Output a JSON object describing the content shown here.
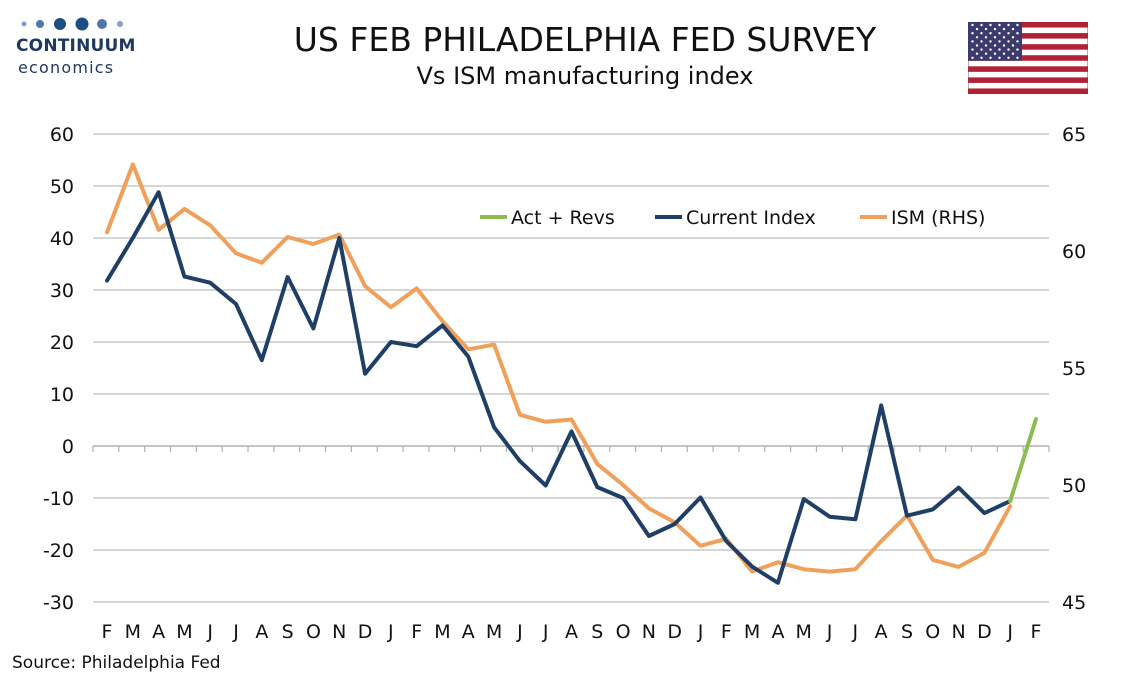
{
  "header": {
    "logo_word1": "CONTINUUM",
    "logo_word2": "economics",
    "title": "US FEB PHILADELPHIA FED SURVEY",
    "subtitle": "Vs ISM manufacturing index",
    "flag_icon": "us-flag-icon"
  },
  "footer": {
    "source": "Source: Philadelphia Fed"
  },
  "colors": {
    "act_revs": "#8fbc4f",
    "current_index": "#1f3f66",
    "ism": "#f0a05a",
    "grid": "#c8c8c8"
  },
  "chart_data": {
    "type": "line",
    "title": "US FEB PHILADELPHIA FED SURVEY",
    "subtitle": "Vs ISM manufacturing index",
    "categories": [
      "F",
      "M",
      "A",
      "M",
      "J",
      "J",
      "A",
      "S",
      "O",
      "N",
      "D",
      "J",
      "F",
      "M",
      "A",
      "M",
      "J",
      "J",
      "A",
      "S",
      "O",
      "N",
      "D",
      "J",
      "F",
      "M",
      "A",
      "M",
      "J",
      "J",
      "A",
      "S",
      "O",
      "N",
      "D",
      "J",
      "F"
    ],
    "y_left": {
      "min": -30,
      "max": 60,
      "ticks": [
        60,
        50,
        40,
        30,
        20,
        10,
        0,
        -10,
        -20,
        -30
      ]
    },
    "y_right": {
      "min": 45,
      "max": 65,
      "ticks": [
        65,
        60,
        55,
        50,
        45
      ]
    },
    "grid": true,
    "legend_position": "top-right",
    "series": [
      {
        "name": "Act + Revs",
        "axis": "left",
        "color": "#8fbc4f",
        "values": [
          null,
          null,
          null,
          null,
          null,
          null,
          null,
          null,
          null,
          null,
          null,
          null,
          null,
          null,
          null,
          null,
          null,
          null,
          null,
          null,
          null,
          null,
          null,
          null,
          null,
          null,
          null,
          null,
          null,
          null,
          null,
          null,
          null,
          null,
          null,
          -10.6,
          5.2
        ]
      },
      {
        "name": "Current Index",
        "axis": "left",
        "color": "#1f3f66",
        "values": [
          31.8,
          40.0,
          48.8,
          32.6,
          31.4,
          27.3,
          16.5,
          32.5,
          22.6,
          40.0,
          13.9,
          20.0,
          19.2,
          23.2,
          17.2,
          3.6,
          -2.9,
          -7.6,
          2.8,
          -7.9,
          -10.0,
          -17.3,
          -15.0,
          -9.9,
          -18.3,
          -23.2,
          -26.3,
          -10.2,
          -13.6,
          -14.1,
          7.8,
          -13.4,
          -12.2,
          -8.0,
          -12.9,
          -10.6,
          null
        ]
      },
      {
        "name": "ISM (RHS)",
        "axis": "right",
        "color": "#f0a05a",
        "values": [
          60.8,
          63.7,
          60.9,
          61.8,
          61.1,
          59.9,
          59.5,
          60.6,
          60.3,
          60.7,
          58.5,
          57.6,
          58.4,
          57.0,
          55.8,
          56.0,
          53.0,
          52.7,
          52.8,
          50.9,
          50.0,
          49.0,
          48.4,
          47.4,
          47.7,
          46.3,
          46.7,
          46.4,
          46.3,
          46.4,
          47.6,
          48.7,
          46.8,
          46.5,
          47.1,
          49.1,
          null
        ]
      }
    ]
  }
}
